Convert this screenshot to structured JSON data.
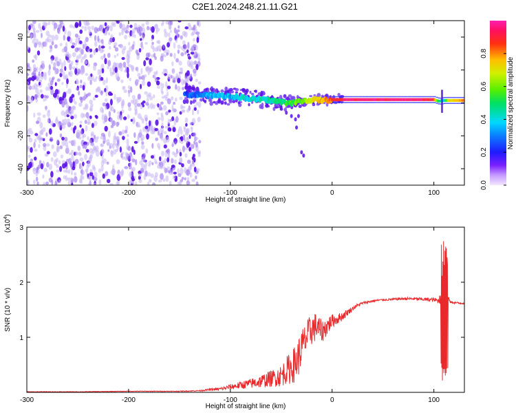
{
  "title": "C2E1.2024.248.21.11.G21",
  "colors": {
    "snr_line": "#e8282b",
    "axis": "#000000",
    "scatter_low": "#c7b4f2",
    "scatter_high": "#5a12e6"
  },
  "chart_data": [
    {
      "type": "heatmap",
      "name": "spectrogram",
      "xlabel": "Height of straight line (km)",
      "ylabel": "Frequency (Hz)",
      "xlim": [
        -300,
        130
      ],
      "ylim": [
        -50,
        50
      ],
      "xticks": [
        -300,
        -200,
        -100,
        0,
        100
      ],
      "xtick_labels": [
        "-300",
        "-200",
        "-100",
        "0",
        "100"
      ],
      "yticks": [
        -40,
        -20,
        0,
        20,
        40
      ],
      "ytick_labels": [
        "-40",
        "-20",
        "0",
        "20",
        "40"
      ],
      "grid": false,
      "colorbar": {
        "label": "Normalized spectral amplitude",
        "range": [
          0,
          1
        ],
        "ticks": [
          0.0,
          0.2,
          0.4,
          0.6,
          0.8
        ],
        "tick_labels": [
          "0.0",
          "0.2",
          "0.4",
          "0.6",
          "0.8"
        ],
        "colormap": "rainbow (purple-blue-cyan-green-yellow-red-magenta)"
      },
      "noise_region_x": [
        -300,
        -130
      ],
      "signal_track": {
        "x": [
          -145,
          -130,
          -120,
          -110,
          -100,
          -90,
          -80,
          -70,
          -60,
          -50,
          -40,
          -30,
          -20,
          -10,
          0,
          20,
          40,
          60,
          80,
          100,
          105,
          110,
          115,
          130
        ],
        "y": [
          5,
          5,
          4.5,
          4.5,
          4,
          3.5,
          2.5,
          2,
          1.5,
          0.5,
          0,
          1,
          2,
          1.5,
          2,
          2,
          2,
          2,
          2,
          2,
          1,
          1.5,
          1.5,
          1.5
        ],
        "amplitude": [
          0.25,
          0.3,
          0.35,
          0.35,
          0.35,
          0.4,
          0.4,
          0.45,
          0.45,
          0.5,
          0.55,
          0.6,
          0.7,
          0.75,
          0.85,
          0.95,
          0.95,
          0.95,
          0.95,
          0.9,
          0.5,
          0.4,
          0.7,
          0.8
        ]
      },
      "scatter_tail": {
        "x": [
          -50,
          -45,
          -40,
          -36,
          -33,
          -30,
          -28,
          -35
        ],
        "y": [
          -3,
          -6,
          -8,
          -10,
          -8,
          -30,
          -32,
          -15
        ]
      }
    },
    {
      "type": "line",
      "name": "snr",
      "xlabel": "Height of straight line (km)",
      "ylabel": "SNR (10 * v/v)",
      "yscale_label": "(x10",
      "yscale_exponent": "4",
      "yscale_close": ")",
      "xlim": [
        -300,
        130
      ],
      "ylim": [
        0,
        3
      ],
      "xticks": [
        -300,
        -200,
        -100,
        0,
        100
      ],
      "xtick_labels": [
        "-300",
        "-200",
        "-100",
        "0",
        "100"
      ],
      "yticks": [
        1,
        2,
        3
      ],
      "ytick_labels": [
        "1",
        "2",
        "3"
      ],
      "grid": false,
      "series": [
        {
          "x": [
            -300,
            -250,
            -200,
            -150,
            -130,
            -120,
            -110,
            -100,
            -90,
            -80,
            -70,
            -60,
            -50,
            -45,
            -40,
            -35,
            -30,
            -25,
            -20,
            -15,
            -10,
            -5,
            0,
            5,
            10,
            15,
            20,
            25,
            30,
            40,
            50,
            60,
            70,
            80,
            90,
            100,
            105,
            108,
            110,
            112,
            114,
            116,
            120,
            125,
            130
          ],
          "y": [
            0.01,
            0.01,
            0.02,
            0.02,
            0.03,
            0.05,
            0.06,
            0.1,
            0.13,
            0.16,
            0.2,
            0.25,
            0.3,
            0.4,
            0.45,
            0.55,
            0.8,
            1.0,
            1.15,
            1.2,
            1.1,
            1.2,
            1.3,
            1.33,
            1.38,
            1.45,
            1.52,
            1.58,
            1.62,
            1.66,
            1.68,
            1.69,
            1.7,
            1.7,
            1.69,
            1.68,
            1.66,
            2.0,
            0.2,
            3.0,
            1.72,
            1.64,
            1.63,
            1.62,
            1.62
          ],
          "noise_amplitude": [
            0.005,
            0.005,
            0.005,
            0.006,
            0.01,
            0.02,
            0.03,
            0.05,
            0.07,
            0.09,
            0.12,
            0.15,
            0.2,
            0.25,
            0.3,
            0.35,
            0.35,
            0.3,
            0.3,
            0.25,
            0.2,
            0.18,
            0.12,
            0.1,
            0.08,
            0.06,
            0.04,
            0.03,
            0.025,
            0.02,
            0.02,
            0.02,
            0.025,
            0.03,
            0.03,
            0.04,
            0.05,
            0.5,
            0.5,
            0.5,
            0.05,
            0.02,
            0.02,
            0.02,
            0.02
          ]
        }
      ]
    }
  ]
}
